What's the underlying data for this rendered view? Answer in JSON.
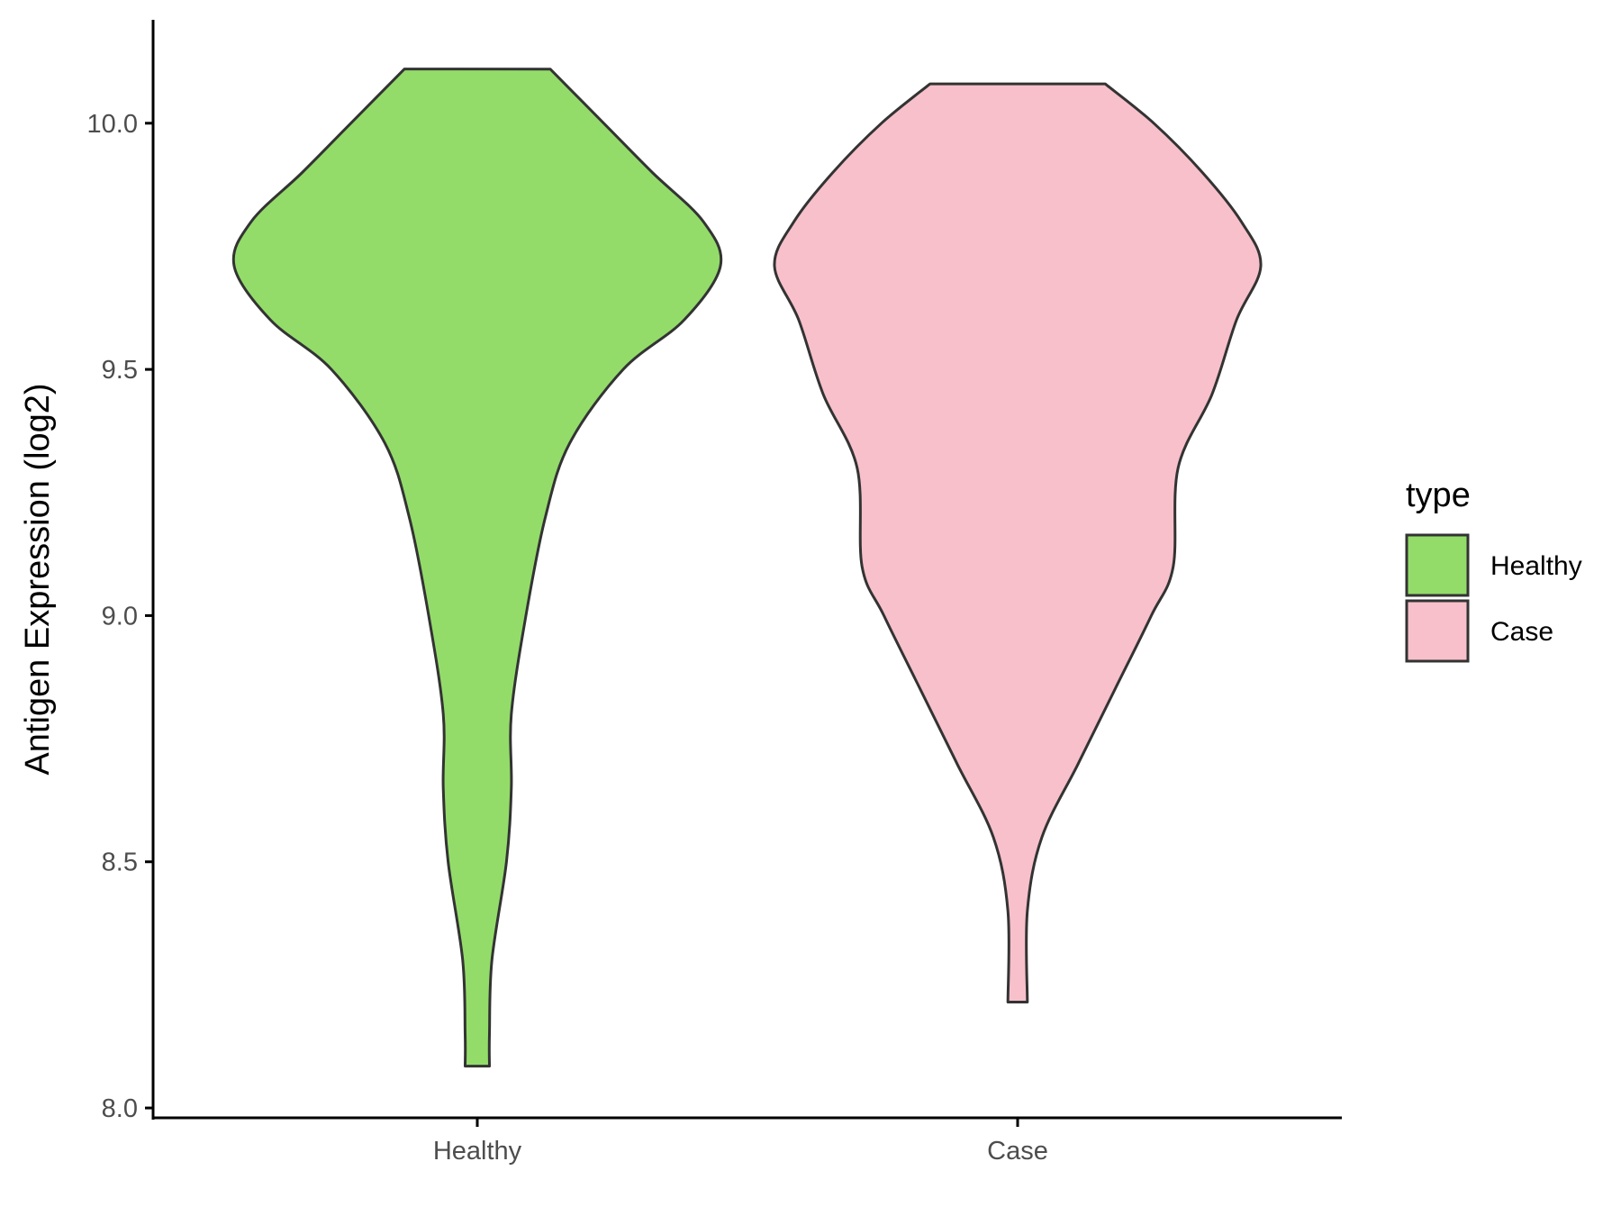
{
  "chart_data": {
    "type": "violin",
    "ylabel": "Antigen Expression (log2)",
    "xlabel": "",
    "ylim": [
      7.98,
      10.21
    ],
    "yticks": [
      8.0,
      8.5,
      9.0,
      9.5,
      10.0
    ],
    "ytick_labels": [
      "8.0",
      "8.5",
      "9.0",
      "9.5",
      "10.0"
    ],
    "categories": [
      "Healthy",
      "Case"
    ],
    "legend": {
      "title": "type",
      "position": "right",
      "entries": [
        "Healthy",
        "Case"
      ]
    },
    "grid": false,
    "outline_color": "#333333",
    "series": [
      {
        "name": "Healthy",
        "color": "#93dc6a",
        "min": 8.085,
        "max": 10.11,
        "density_profile": [
          [
            8.085,
            0.05
          ],
          [
            8.15,
            0.05
          ],
          [
            8.3,
            0.06
          ],
          [
            8.5,
            0.12
          ],
          [
            8.65,
            0.14
          ],
          [
            8.8,
            0.14
          ],
          [
            9.0,
            0.2
          ],
          [
            9.2,
            0.28
          ],
          [
            9.35,
            0.38
          ],
          [
            9.5,
            0.6
          ],
          [
            9.6,
            0.85
          ],
          [
            9.71,
            1.0
          ],
          [
            9.8,
            0.93
          ],
          [
            9.9,
            0.72
          ],
          [
            10.0,
            0.52
          ],
          [
            10.11,
            0.3
          ]
        ]
      },
      {
        "name": "Case",
        "color": "#f7c0cb",
        "min": 8.215,
        "max": 10.08,
        "density_profile": [
          [
            8.215,
            0.04
          ],
          [
            8.4,
            0.04
          ],
          [
            8.55,
            0.1
          ],
          [
            8.7,
            0.25
          ],
          [
            8.85,
            0.4
          ],
          [
            9.0,
            0.55
          ],
          [
            9.1,
            0.64
          ],
          [
            9.3,
            0.66
          ],
          [
            9.45,
            0.8
          ],
          [
            9.6,
            0.9
          ],
          [
            9.71,
            1.0
          ],
          [
            9.8,
            0.92
          ],
          [
            9.9,
            0.76
          ],
          [
            10.0,
            0.56
          ],
          [
            10.08,
            0.36
          ]
        ]
      }
    ]
  }
}
